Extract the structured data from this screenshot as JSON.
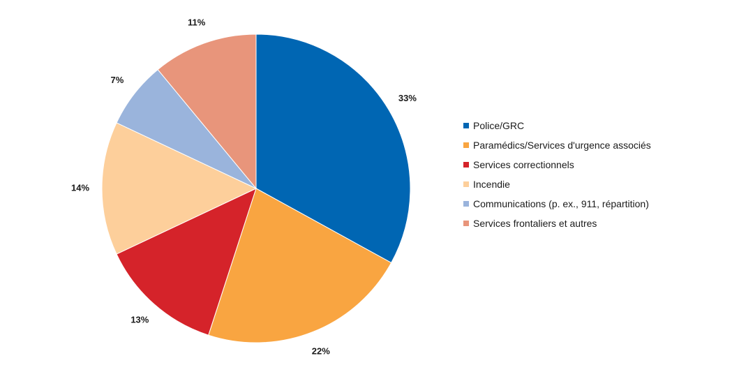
{
  "chart_data": {
    "type": "pie",
    "title": "",
    "legend_position": "right",
    "categories": [
      "Police/GRC",
      "Paramédics/Services d'urgence associés",
      "Services correctionnels",
      "Incendie",
      "Communications (p. ex., 911, répartition)",
      "Services frontaliers et autres"
    ],
    "values": [
      33,
      22,
      13,
      14,
      7,
      11
    ],
    "labels": [
      "33%",
      "22%",
      "13%",
      "14%",
      "7%",
      "11%"
    ],
    "colors": [
      "#0066b3",
      "#f9a541",
      "#d5232a",
      "#fdcf9b",
      "#9ab4dc",
      "#e8957b"
    ]
  }
}
